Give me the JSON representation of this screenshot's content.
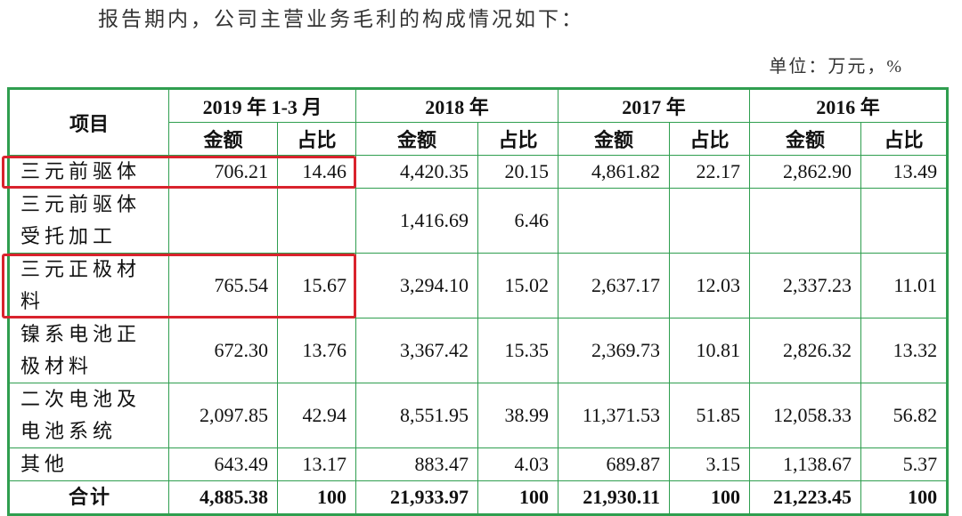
{
  "intro": "报告期内，公司主营业务毛利的构成情况如下：",
  "unit": "单位：万元，%",
  "table": {
    "item_header": "项目",
    "periods": [
      "2019 年 1-3 月",
      "2018 年",
      "2017 年",
      "2016 年"
    ],
    "subheaders": [
      "金额",
      "占比",
      "金额",
      "占比",
      "金额",
      "占比",
      "金额",
      "占比"
    ],
    "rows": [
      [
        "三元前驱体",
        "706.21",
        "14.46",
        "4,420.35",
        "20.15",
        "4,861.82",
        "22.17",
        "2,862.90",
        "13.49"
      ],
      [
        "三元前驱体受托加工",
        null,
        null,
        "1,416.69",
        "6.46",
        null,
        null,
        null,
        null
      ],
      [
        "三元正极材料",
        "765.54",
        "15.67",
        "3,294.10",
        "15.02",
        "2,637.17",
        "12.03",
        "2,337.23",
        "11.01"
      ],
      [
        "镍系电池正极材料",
        "672.30",
        "13.76",
        "3,367.42",
        "15.35",
        "2,369.73",
        "10.81",
        "2,826.32",
        "13.32"
      ],
      [
        "二次电池及电池系统",
        "2,097.85",
        "42.94",
        "8,551.95",
        "38.99",
        "11,371.53",
        "51.85",
        "12,058.33",
        "56.82"
      ],
      [
        "其他",
        "643.49",
        "13.17",
        "883.47",
        "4.03",
        "689.87",
        "3.15",
        "1,138.67",
        "5.37"
      ]
    ],
    "total_row": [
      "合计",
      "4,885.38",
      "100",
      "21,933.97",
      "100",
      "21,930.11",
      "100",
      "21,223.45",
      "100"
    ]
  }
}
